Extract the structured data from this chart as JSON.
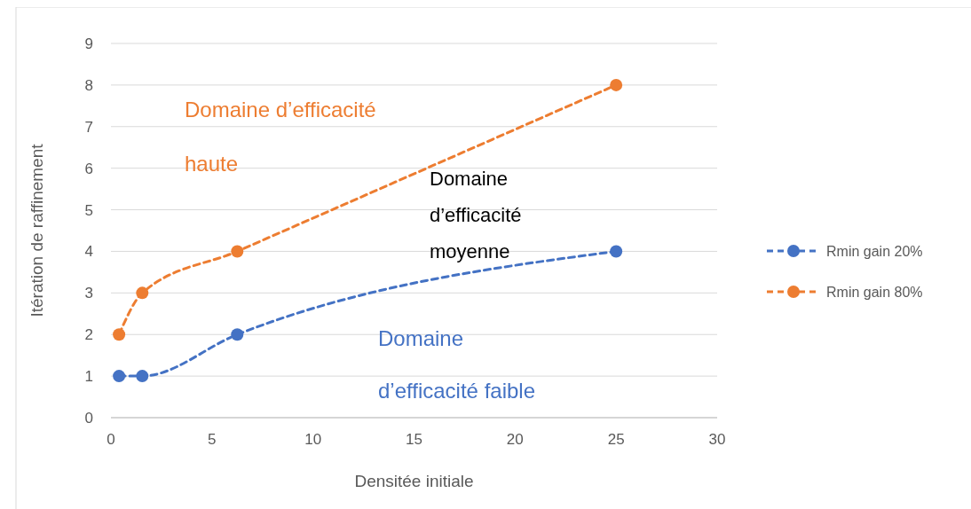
{
  "chart_data": {
    "type": "line",
    "xlabel": "Densitée initiale",
    "ylabel": "Itération de raffinement",
    "xlim": [
      0,
      30
    ],
    "xticks": [
      0,
      5,
      10,
      15,
      20,
      25,
      30
    ],
    "ylim": [
      0,
      9
    ],
    "yticks": [
      0,
      1,
      2,
      3,
      4,
      5,
      6,
      7,
      8,
      9
    ],
    "grid": "y",
    "legend": "right",
    "marker": "circle",
    "line_style": "dashed",
    "x": [
      0.4,
      1.55,
      6.25,
      25
    ],
    "series": [
      {
        "name": "Rmin gain 20%",
        "color": "#4472c4",
        "values": [
          1,
          1,
          2,
          4
        ]
      },
      {
        "name": "Rmin gain 80%",
        "color": "#ed7d31",
        "values": [
          2,
          3,
          4,
          8
        ]
      }
    ],
    "annotations": [
      "Domaine d’efficacité haute",
      "Domaine d’efficacité moyenne",
      "Domaine d’efficacité faible"
    ]
  }
}
